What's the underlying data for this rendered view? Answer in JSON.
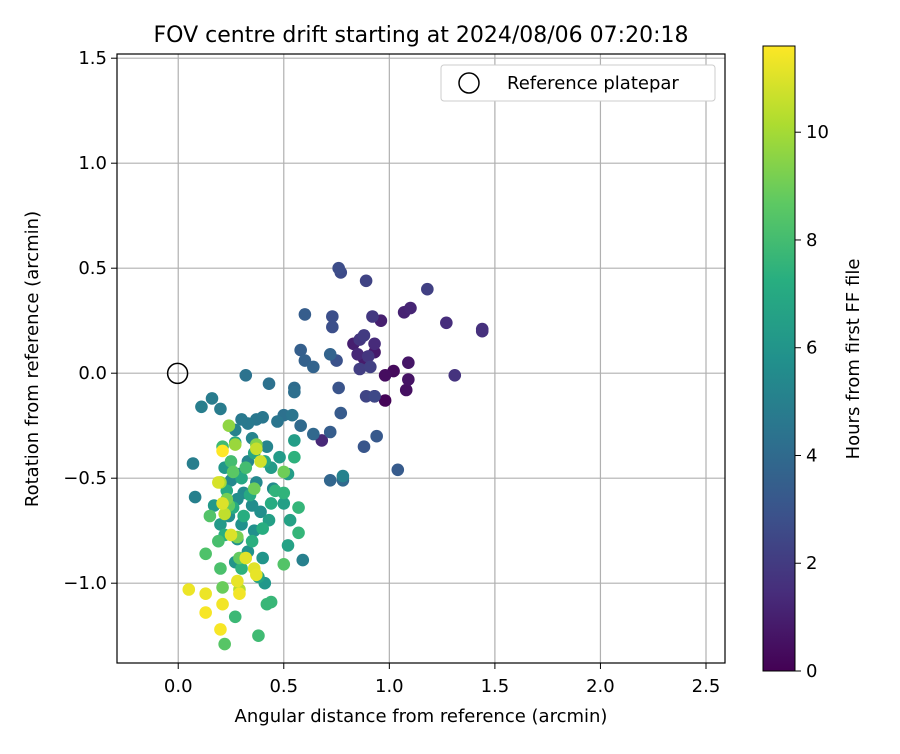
{
  "chart_data": {
    "type": "scatter",
    "title": "FOV centre drift starting at 2024/08/06 07:20:18",
    "xlabel": "Angular distance from reference (arcmin)",
    "ylabel": "Rotation from reference (arcmin)",
    "xlim": [
      -0.29,
      2.59
    ],
    "ylim": [
      -1.38,
      1.52
    ],
    "xticks": [
      0.0,
      0.5,
      1.0,
      1.5,
      2.0,
      2.5
    ],
    "xtick_labels": [
      "0.0",
      "0.5",
      "1.0",
      "1.5",
      "2.0",
      "2.5"
    ],
    "yticks": [
      -1.0,
      -0.5,
      0.0,
      0.5,
      1.0,
      1.5
    ],
    "ytick_labels": [
      "−1.0",
      "−0.5",
      "0.0",
      "0.5",
      "1.0",
      "1.5"
    ],
    "grid": true,
    "legend": {
      "placement": "top-right",
      "entries": [
        "Reference platepar"
      ]
    },
    "reference_point": {
      "x": 0.0,
      "y": 0.0
    },
    "colorbar": {
      "label": "Hours from first FF file",
      "colormap": "viridis",
      "range": [
        0,
        11.6
      ],
      "ticks": [
        0,
        2,
        4,
        6,
        8,
        10
      ],
      "tick_labels": [
        "0",
        "2",
        "4",
        "6",
        "8",
        "10"
      ]
    },
    "points": [
      {
        "x": 0.93,
        "y": -0.11,
        "h": 0.2
      },
      {
        "x": 0.98,
        "y": -0.13,
        "h": 0.1
      },
      {
        "x": 1.02,
        "y": 0.01,
        "h": 0.3
      },
      {
        "x": 0.98,
        "y": -0.01,
        "h": 0.4
      },
      {
        "x": 1.08,
        "y": -0.08,
        "h": 0.5
      },
      {
        "x": 1.09,
        "y": -0.03,
        "h": 0.6
      },
      {
        "x": 1.09,
        "y": 0.05,
        "h": 0.7
      },
      {
        "x": 0.93,
        "y": 0.1,
        "h": 0.8
      },
      {
        "x": 0.88,
        "y": 0.07,
        "h": 0.9
      },
      {
        "x": 0.83,
        "y": 0.14,
        "h": 1.0
      },
      {
        "x": 0.96,
        "y": 0.25,
        "h": 1.0
      },
      {
        "x": 1.07,
        "y": 0.29,
        "h": 1.1
      },
      {
        "x": 1.1,
        "y": 0.31,
        "h": 1.2
      },
      {
        "x": 0.85,
        "y": 0.09,
        "h": 1.3
      },
      {
        "x": 0.68,
        "y": -0.32,
        "h": 1.3
      },
      {
        "x": 0.93,
        "y": 0.14,
        "h": 1.4
      },
      {
        "x": 1.27,
        "y": 0.24,
        "h": 1.5
      },
      {
        "x": 1.44,
        "y": 0.21,
        "h": 1.6
      },
      {
        "x": 1.44,
        "y": 0.2,
        "h": 1.6
      },
      {
        "x": 1.31,
        "y": -0.01,
        "h": 1.7
      },
      {
        "x": 0.9,
        "y": 0.08,
        "h": 1.8
      },
      {
        "x": 0.86,
        "y": 0.16,
        "h": 1.8
      },
      {
        "x": 0.92,
        "y": 0.27,
        "h": 1.9
      },
      {
        "x": 0.88,
        "y": 0.18,
        "h": 2.0
      },
      {
        "x": 0.86,
        "y": 0.02,
        "h": 2.1
      },
      {
        "x": 0.91,
        "y": 0.03,
        "h": 2.2
      },
      {
        "x": 1.18,
        "y": 0.4,
        "h": 2.2
      },
      {
        "x": 0.89,
        "y": 0.44,
        "h": 2.3
      },
      {
        "x": 0.89,
        "y": -0.11,
        "h": 2.4
      },
      {
        "x": 0.93,
        "y": -0.11,
        "h": 2.5
      },
      {
        "x": 0.77,
        "y": 0.48,
        "h": 2.6
      },
      {
        "x": 0.76,
        "y": 0.5,
        "h": 2.7
      },
      {
        "x": 0.73,
        "y": 0.27,
        "h": 2.8
      },
      {
        "x": 0.73,
        "y": 0.22,
        "h": 2.8
      },
      {
        "x": 0.75,
        "y": 0.06,
        "h": 2.9
      },
      {
        "x": 0.76,
        "y": -0.07,
        "h": 3.0
      },
      {
        "x": 0.88,
        "y": -0.35,
        "h": 3.1
      },
      {
        "x": 0.94,
        "y": -0.3,
        "h": 3.2
      },
      {
        "x": 1.04,
        "y": -0.46,
        "h": 3.3
      },
      {
        "x": 0.77,
        "y": -0.19,
        "h": 3.3
      },
      {
        "x": 0.72,
        "y": -0.28,
        "h": 3.4
      },
      {
        "x": 0.6,
        "y": 0.28,
        "h": 3.4
      },
      {
        "x": 0.58,
        "y": 0.11,
        "h": 3.5
      },
      {
        "x": 0.6,
        "y": 0.06,
        "h": 3.6
      },
      {
        "x": 0.64,
        "y": 0.03,
        "h": 3.7
      },
      {
        "x": 0.72,
        "y": 0.09,
        "h": 3.7
      },
      {
        "x": 0.72,
        "y": -0.51,
        "h": 3.8
      },
      {
        "x": 0.78,
        "y": -0.51,
        "h": 3.9
      },
      {
        "x": 0.64,
        "y": -0.29,
        "h": 3.9
      },
      {
        "x": 0.58,
        "y": -0.25,
        "h": 4.0
      },
      {
        "x": 0.55,
        "y": -0.07,
        "h": 4.1
      },
      {
        "x": 0.55,
        "y": -0.09,
        "h": 4.2
      },
      {
        "x": 0.5,
        "y": -0.2,
        "h": 4.3
      },
      {
        "x": 0.43,
        "y": -0.05,
        "h": 4.3
      },
      {
        "x": 0.32,
        "y": -0.01,
        "h": 4.4
      },
      {
        "x": 0.47,
        "y": -0.23,
        "h": 4.5
      },
      {
        "x": 0.54,
        "y": -0.2,
        "h": 4.5
      },
      {
        "x": 0.4,
        "y": -0.21,
        "h": 4.6
      },
      {
        "x": 0.37,
        "y": -0.22,
        "h": 4.6
      },
      {
        "x": 0.33,
        "y": -0.24,
        "h": 4.7
      },
      {
        "x": 0.3,
        "y": -0.22,
        "h": 4.7
      },
      {
        "x": 0.16,
        "y": -0.12,
        "h": 4.8
      },
      {
        "x": 0.2,
        "y": -0.17,
        "h": 4.8
      },
      {
        "x": 0.11,
        "y": -0.16,
        "h": 4.9
      },
      {
        "x": 0.07,
        "y": -0.43,
        "h": 4.9
      },
      {
        "x": 0.08,
        "y": -0.59,
        "h": 5.0
      },
      {
        "x": 0.59,
        "y": -0.89,
        "h": 5.0
      },
      {
        "x": 0.78,
        "y": -0.49,
        "h": 5.1
      },
      {
        "x": 0.27,
        "y": -0.27,
        "h": 5.1
      },
      {
        "x": 0.35,
        "y": -0.31,
        "h": 5.2
      },
      {
        "x": 0.42,
        "y": -0.35,
        "h": 5.2
      },
      {
        "x": 0.33,
        "y": -0.42,
        "h": 5.3
      },
      {
        "x": 0.29,
        "y": -0.48,
        "h": 5.3
      },
      {
        "x": 0.25,
        "y": -0.51,
        "h": 5.4
      },
      {
        "x": 0.37,
        "y": -0.52,
        "h": 5.4
      },
      {
        "x": 0.45,
        "y": -0.55,
        "h": 5.5
      },
      {
        "x": 0.31,
        "y": -0.57,
        "h": 5.5
      },
      {
        "x": 0.28,
        "y": -0.6,
        "h": 5.6
      },
      {
        "x": 0.35,
        "y": -0.63,
        "h": 5.6
      },
      {
        "x": 0.39,
        "y": -0.66,
        "h": 5.7
      },
      {
        "x": 0.24,
        "y": -0.68,
        "h": 5.7
      },
      {
        "x": 0.3,
        "y": -0.72,
        "h": 5.8
      },
      {
        "x": 0.36,
        "y": -0.75,
        "h": 5.8
      },
      {
        "x": 0.28,
        "y": -0.79,
        "h": 5.9
      },
      {
        "x": 0.33,
        "y": -0.85,
        "h": 5.9
      },
      {
        "x": 0.4,
        "y": -0.88,
        "h": 6.0
      },
      {
        "x": 0.27,
        "y": -0.9,
        "h": 6.0
      },
      {
        "x": 0.41,
        "y": -1.0,
        "h": 6.1
      },
      {
        "x": 0.22,
        "y": -0.45,
        "h": 6.1
      },
      {
        "x": 0.17,
        "y": -0.63,
        "h": 6.2
      },
      {
        "x": 0.2,
        "y": -0.72,
        "h": 6.2
      },
      {
        "x": 0.48,
        "y": -0.4,
        "h": 6.3
      },
      {
        "x": 0.44,
        "y": -0.45,
        "h": 6.3
      },
      {
        "x": 0.52,
        "y": -0.48,
        "h": 6.4
      },
      {
        "x": 0.55,
        "y": -0.32,
        "h": 6.4
      },
      {
        "x": 0.43,
        "y": -0.7,
        "h": 6.5
      },
      {
        "x": 0.5,
        "y": -0.62,
        "h": 6.5
      },
      {
        "x": 0.53,
        "y": -0.7,
        "h": 6.6
      },
      {
        "x": 0.52,
        "y": -0.82,
        "h": 6.6
      },
      {
        "x": 0.38,
        "y": -0.97,
        "h": 6.7
      },
      {
        "x": 0.27,
        "y": -0.33,
        "h": 6.8
      },
      {
        "x": 0.36,
        "y": -0.38,
        "h": 6.8
      },
      {
        "x": 0.41,
        "y": -0.42,
        "h": 6.9
      },
      {
        "x": 0.3,
        "y": -0.5,
        "h": 6.9
      },
      {
        "x": 0.23,
        "y": -0.56,
        "h": 7.0
      },
      {
        "x": 0.34,
        "y": -0.58,
        "h": 7.0
      },
      {
        "x": 0.44,
        "y": -0.62,
        "h": 7.1
      },
      {
        "x": 0.26,
        "y": -0.64,
        "h": 7.1
      },
      {
        "x": 0.31,
        "y": -0.68,
        "h": 7.2
      },
      {
        "x": 0.4,
        "y": -0.74,
        "h": 7.2
      },
      {
        "x": 0.22,
        "y": -0.77,
        "h": 7.3
      },
      {
        "x": 0.35,
        "y": -0.8,
        "h": 7.3
      },
      {
        "x": 0.3,
        "y": -0.93,
        "h": 7.4
      },
      {
        "x": 0.55,
        "y": -0.4,
        "h": 7.4
      },
      {
        "x": 0.46,
        "y": -0.56,
        "h": 7.5
      },
      {
        "x": 0.5,
        "y": -0.57,
        "h": 7.5
      },
      {
        "x": 0.57,
        "y": -0.64,
        "h": 7.6
      },
      {
        "x": 0.57,
        "y": -0.76,
        "h": 7.6
      },
      {
        "x": 0.44,
        "y": -1.09,
        "h": 7.7
      },
      {
        "x": 0.42,
        "y": -1.1,
        "h": 7.7
      },
      {
        "x": 0.27,
        "y": -1.16,
        "h": 7.8
      },
      {
        "x": 0.38,
        "y": -1.25,
        "h": 7.9
      },
      {
        "x": 0.21,
        "y": -0.35,
        "h": 7.9
      },
      {
        "x": 0.25,
        "y": -0.42,
        "h": 8.0
      },
      {
        "x": 0.32,
        "y": -0.45,
        "h": 8.0
      },
      {
        "x": 0.19,
        "y": -0.8,
        "h": 8.1
      },
      {
        "x": 0.2,
        "y": -0.93,
        "h": 8.2
      },
      {
        "x": 0.13,
        "y": -0.86,
        "h": 8.3
      },
      {
        "x": 0.15,
        "y": -0.68,
        "h": 8.4
      },
      {
        "x": 0.5,
        "y": -0.91,
        "h": 8.4
      },
      {
        "x": 0.22,
        "y": -1.29,
        "h": 8.5
      },
      {
        "x": 0.26,
        "y": -0.47,
        "h": 8.6
      },
      {
        "x": 0.24,
        "y": -0.63,
        "h": 8.7
      },
      {
        "x": 0.29,
        "y": -0.88,
        "h": 8.8
      },
      {
        "x": 0.21,
        "y": -1.02,
        "h": 8.9
      },
      {
        "x": 0.5,
        "y": -0.47,
        "h": 9.0
      },
      {
        "x": 0.36,
        "y": -0.55,
        "h": 9.0
      },
      {
        "x": 0.23,
        "y": -0.6,
        "h": 9.1
      },
      {
        "x": 0.28,
        "y": -0.78,
        "h": 9.2
      },
      {
        "x": 0.37,
        "y": -0.34,
        "h": 9.4
      },
      {
        "x": 0.24,
        "y": -0.25,
        "h": 9.6
      },
      {
        "x": 0.27,
        "y": -0.34,
        "h": 9.8
      },
      {
        "x": 0.2,
        "y": -0.52,
        "h": 10.0
      },
      {
        "x": 0.29,
        "y": -1.03,
        "h": 10.3
      },
      {
        "x": 0.22,
        "y": -0.67,
        "h": 10.5
      },
      {
        "x": 0.37,
        "y": -0.36,
        "h": 10.6
      },
      {
        "x": 0.39,
        "y": -0.42,
        "h": 10.8
      },
      {
        "x": 0.19,
        "y": -0.52,
        "h": 10.9
      },
      {
        "x": 0.21,
        "y": -0.62,
        "h": 11.0
      },
      {
        "x": 0.25,
        "y": -0.77,
        "h": 11.0
      },
      {
        "x": 0.32,
        "y": -0.88,
        "h": 11.1
      },
      {
        "x": 0.36,
        "y": -0.93,
        "h": 11.1
      },
      {
        "x": 0.37,
        "y": -0.96,
        "h": 11.2
      },
      {
        "x": 0.28,
        "y": -0.99,
        "h": 11.2
      },
      {
        "x": 0.05,
        "y": -1.03,
        "h": 11.3
      },
      {
        "x": 0.13,
        "y": -1.05,
        "h": 11.3
      },
      {
        "x": 0.29,
        "y": -1.05,
        "h": 11.4
      },
      {
        "x": 0.21,
        "y": -1.1,
        "h": 11.4
      },
      {
        "x": 0.13,
        "y": -1.14,
        "h": 11.5
      },
      {
        "x": 0.2,
        "y": -1.22,
        "h": 11.5
      },
      {
        "x": 0.21,
        "y": -0.37,
        "h": 11.6
      }
    ]
  }
}
